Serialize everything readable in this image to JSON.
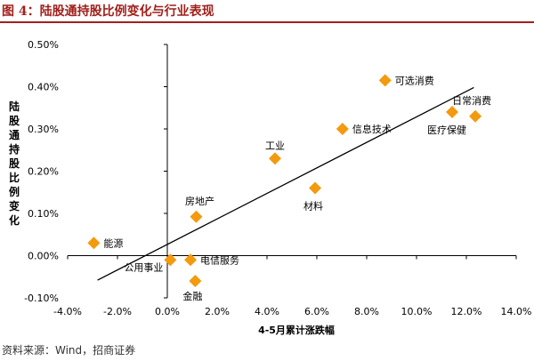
{
  "header": {
    "title": "图 4：陆股通持股比例变化与行业表现"
  },
  "footer": {
    "source": "资料来源：Wind，招商证券"
  },
  "chart_data": {
    "type": "scatter",
    "xlabel": "4-5月累计涨跌幅",
    "ylabel": "陆股通持股比例变化",
    "xlim": [
      -0.04,
      0.14
    ],
    "ylim": [
      -0.001,
      0.005
    ],
    "x_ticks": [
      -0.04,
      -0.02,
      0.0,
      0.02,
      0.04,
      0.06,
      0.08,
      0.1,
      0.12,
      0.14
    ],
    "x_tick_labels": [
      "-4.0%",
      "-2.0%",
      "0.0%",
      "2.0%",
      "4.0%",
      "6.0%",
      "8.0%",
      "10.0%",
      "12.0%",
      "14.0%"
    ],
    "y_ticks": [
      -0.001,
      0.0,
      0.001,
      0.002,
      0.003,
      0.004,
      0.005
    ],
    "y_tick_labels": [
      "-0.10%",
      "0.00%",
      "0.10%",
      "0.20%",
      "0.30%",
      "0.40%",
      "0.50%"
    ],
    "grid": false,
    "marker_color": "#f39a0e",
    "points": [
      {
        "label": "能源",
        "x": -0.0295,
        "y": 0.0003,
        "label_side": "right"
      },
      {
        "label": "公用事业",
        "x": 0.0012,
        "y": -0.0001,
        "label_side": "left"
      },
      {
        "label": "电信服务",
        "x": 0.0093,
        "y": -0.0001,
        "label_side": "right"
      },
      {
        "label": "金融",
        "x": 0.0112,
        "y": -0.0006,
        "label_side": "below"
      },
      {
        "label": "房地产",
        "x": 0.0116,
        "y": 0.00092,
        "label_side": "above"
      },
      {
        "label": "工业",
        "x": 0.0432,
        "y": 0.0023,
        "label_side": "above"
      },
      {
        "label": "材料",
        "x": 0.0593,
        "y": 0.0016,
        "label_side": "below"
      },
      {
        "label": "信息技术",
        "x": 0.0703,
        "y": 0.003,
        "label_side": "right"
      },
      {
        "label": "可选消费",
        "x": 0.0874,
        "y": 0.00415,
        "label_side": "right"
      },
      {
        "label": "医疗保健",
        "x": 0.1143,
        "y": 0.0034,
        "label_side": "below"
      },
      {
        "label": "日常消费",
        "x": 0.1236,
        "y": 0.0033,
        "label_side": "above"
      }
    ],
    "trendline": {
      "x": [
        -0.028,
        0.123
      ],
      "y": [
        -0.00058,
        0.00398
      ],
      "color": "#000000"
    }
  }
}
